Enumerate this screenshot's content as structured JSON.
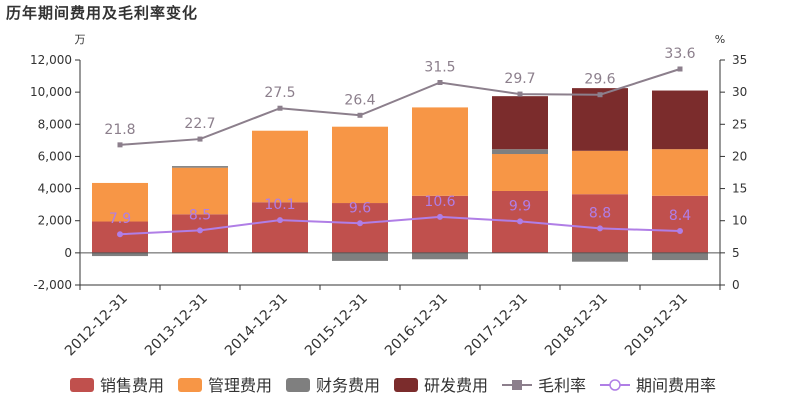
{
  "title": "历年期间费用及毛利率变化",
  "chart_data": {
    "type": "bar",
    "stacked": true,
    "title": "历年期间费用及毛利率变化",
    "categories": [
      "2012-12-31",
      "2013-12-31",
      "2014-12-31",
      "2015-12-31",
      "2016-12-31",
      "2017-12-31",
      "2018-12-31",
      "2019-12-31"
    ],
    "y_left": {
      "unit": "万",
      "ylim": [
        -2000,
        12000
      ],
      "ticks": [
        -2000,
        0,
        2000,
        4000,
        6000,
        8000,
        10000,
        12000
      ],
      "tick_labels": [
        "-2,000",
        "0",
        "2,000",
        "4,000",
        "6,000",
        "8,000",
        "10,000",
        "12,000"
      ]
    },
    "y_right": {
      "unit": "%",
      "ylim": [
        0,
        35
      ],
      "ticks": [
        0,
        5,
        10,
        15,
        20,
        25,
        30,
        35
      ],
      "tick_labels": [
        "0",
        "5",
        "10",
        "15",
        "20",
        "25",
        "30",
        "35"
      ]
    },
    "series": [
      {
        "name": "销售费用",
        "kind": "bar",
        "axis": "left",
        "color": "#c0504d",
        "values": [
          1950,
          2400,
          3150,
          3100,
          3550,
          3850,
          3650,
          3550
        ]
      },
      {
        "name": "管理费用",
        "kind": "bar",
        "axis": "left",
        "color": "#f79646",
        "values": [
          2400,
          2900,
          4450,
          4750,
          5500,
          2300,
          2700,
          2900
        ]
      },
      {
        "name": "财务费用",
        "kind": "bar",
        "axis": "left",
        "color": "#7f7f7f",
        "values": [
          -200,
          100,
          0,
          -500,
          -400,
          300,
          -550,
          -450
        ]
      },
      {
        "name": "研发费用",
        "kind": "bar",
        "axis": "left",
        "color": "#7b2c2c",
        "values": [
          0,
          0,
          0,
          0,
          0,
          3300,
          3900,
          3650
        ]
      },
      {
        "name": "毛利率",
        "kind": "line",
        "axis": "right",
        "color": "#8c7f8c",
        "marker": "square",
        "values": [
          21.8,
          22.7,
          27.5,
          26.4,
          31.5,
          29.7,
          29.6,
          33.6
        ],
        "labels": [
          "21.8",
          "22.7",
          "27.5",
          "26.4",
          "31.5",
          "29.7",
          "29.6",
          "33.6"
        ]
      },
      {
        "name": "期间费用率",
        "kind": "line",
        "axis": "right",
        "color": "#b07ee6",
        "marker": "circle",
        "values": [
          7.9,
          8.5,
          10.1,
          9.6,
          10.6,
          9.9,
          8.8,
          8.4
        ],
        "labels": [
          "7.9",
          "8.5",
          "10.1",
          "9.6",
          "10.6",
          "9.9",
          "8.8",
          "8.4"
        ]
      }
    ],
    "legend": "bottom",
    "grid": false
  }
}
